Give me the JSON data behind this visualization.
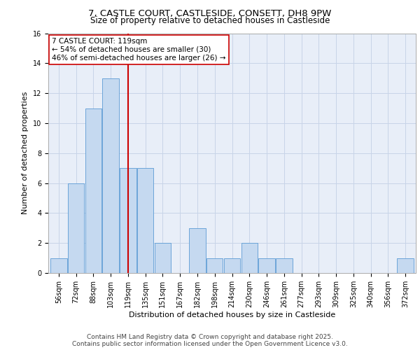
{
  "title_line1": "7, CASTLE COURT, CASTLESIDE, CONSETT, DH8 9PW",
  "title_line2": "Size of property relative to detached houses in Castleside",
  "xlabel": "Distribution of detached houses by size in Castleside",
  "ylabel": "Number of detached properties",
  "categories": [
    "56sqm",
    "72sqm",
    "88sqm",
    "103sqm",
    "119sqm",
    "135sqm",
    "151sqm",
    "167sqm",
    "182sqm",
    "198sqm",
    "214sqm",
    "230sqm",
    "246sqm",
    "261sqm",
    "277sqm",
    "293sqm",
    "309sqm",
    "325sqm",
    "340sqm",
    "356sqm",
    "372sqm"
  ],
  "values": [
    1,
    6,
    11,
    13,
    7,
    7,
    2,
    0,
    3,
    1,
    1,
    2,
    1,
    1,
    0,
    0,
    0,
    0,
    0,
    0,
    1
  ],
  "bar_color": "#c5d9f0",
  "bar_edge_color": "#5b9bd5",
  "redline_index": 4,
  "annotation_line1": "7 CASTLE COURT: 119sqm",
  "annotation_line2": "← 54% of detached houses are smaller (30)",
  "annotation_line3": "46% of semi-detached houses are larger (26) →",
  "annotation_box_color": "#ffffff",
  "annotation_box_edge": "#cc0000",
  "redline_color": "#cc0000",
  "ylim": [
    0,
    16
  ],
  "yticks": [
    0,
    2,
    4,
    6,
    8,
    10,
    12,
    14,
    16
  ],
  "grid_color": "#c8d4e8",
  "background_color": "#e8eef8",
  "footer_line1": "Contains HM Land Registry data © Crown copyright and database right 2025.",
  "footer_line2": "Contains public sector information licensed under the Open Government Licence v3.0.",
  "title_fontsize": 9.5,
  "subtitle_fontsize": 8.5,
  "axis_label_fontsize": 8,
  "tick_fontsize": 7,
  "annotation_fontsize": 7.5,
  "footer_fontsize": 6.5
}
